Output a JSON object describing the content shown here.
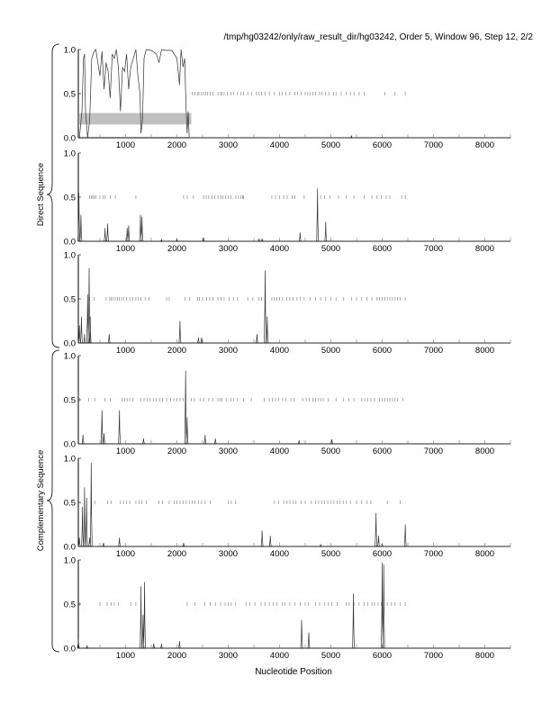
{
  "chart_data": {
    "type": "line",
    "title": "/tmp/hg03242/only/raw_result_dir/hg03242, Order 5, Window 96, Step 12, 2/2",
    "xlabel": "Nucleotide Position",
    "group_labels": [
      "Direct Sequence",
      "Complementary Sequence"
    ],
    "xlim": [
      80,
      8500
    ],
    "ylim": [
      0,
      1
    ],
    "x_ticks": [
      "1000",
      "2000",
      "3000",
      "4000",
      "5000",
      "6000",
      "7000",
      "8000"
    ],
    "x_tick_values": [
      1000,
      2000,
      3000,
      4000,
      5000,
      6000,
      7000,
      8000
    ],
    "y_ticks": [
      "0.0",
      "0.5",
      "1.0"
    ],
    "y_tick_values": [
      0,
      0.5,
      1
    ],
    "highlight_region": {
      "x": [
        100,
        2280
      ],
      "y": [
        0.15,
        0.28
      ]
    },
    "panels": [
      {
        "group": "Direct Sequence",
        "series": [
          [
            100,
            0
          ],
          [
            150,
            0.3
          ],
          [
            180,
            0.9
          ],
          [
            200,
            0.95
          ],
          [
            220,
            0.3
          ],
          [
            260,
            0
          ],
          [
            300,
            0.2
          ],
          [
            340,
            0.9
          ],
          [
            380,
            0.97
          ],
          [
            420,
            1.0
          ],
          [
            460,
            0.85
          ],
          [
            500,
            0.7
          ],
          [
            540,
            0.98
          ],
          [
            580,
            0.55
          ],
          [
            620,
            0.85
          ],
          [
            660,
            0.75
          ],
          [
            700,
            0.45
          ],
          [
            740,
            0.95
          ],
          [
            780,
            0.9
          ],
          [
            820,
            1.0
          ],
          [
            860,
            0.8
          ],
          [
            900,
            0.3
          ],
          [
            940,
            0.8
          ],
          [
            980,
            0.75
          ],
          [
            1020,
            0.95
          ],
          [
            1060,
            0.55
          ],
          [
            1100,
            0.8
          ],
          [
            1150,
            0.9
          ],
          [
            1200,
            1.0
          ],
          [
            1240,
            0.7
          ],
          [
            1280,
            0.5
          ],
          [
            1300,
            0.05
          ],
          [
            1330,
            0.2
          ],
          [
            1360,
            0.9
          ],
          [
            1400,
            1.0
          ],
          [
            1500,
            0.99
          ],
          [
            1600,
            0.95
          ],
          [
            1650,
            0.85
          ],
          [
            1700,
            1.0
          ],
          [
            1800,
            0.99
          ],
          [
            1900,
            0.99
          ],
          [
            2000,
            0.9
          ],
          [
            2050,
            0.6
          ],
          [
            2080,
            1.0
          ],
          [
            2120,
            0.8
          ],
          [
            2150,
            0.9
          ],
          [
            2180,
            0.3
          ],
          [
            2200,
            0.05
          ],
          [
            2220,
            0.3
          ],
          [
            2240,
            0
          ],
          [
            5390,
            0
          ],
          [
            5400,
            0.02
          ],
          [
            5410,
            0
          ],
          [
            8500,
            0
          ]
        ],
        "marks": [
          2300,
          2350,
          2400,
          2430,
          2480,
          2520,
          2560,
          2600,
          2650,
          2700,
          2800,
          2850,
          2880,
          2920,
          2980,
          3050,
          3100,
          3180,
          3250,
          3300,
          3380,
          3450,
          3550,
          3600,
          3650,
          3720,
          3800,
          3900,
          4000,
          4050,
          4120,
          4200,
          4300,
          4350,
          4420,
          4500,
          4550,
          4600,
          4650,
          4700,
          4780,
          4830,
          4900,
          4960,
          5050,
          5100,
          5200,
          5300,
          5380,
          5450,
          5550,
          5650,
          6050,
          6250,
          6450
        ]
      },
      {
        "group": "Direct Sequence",
        "peaks": [
          [
            90,
            0.55
          ],
          [
            130,
            0.3
          ],
          [
            600,
            0.15
          ],
          [
            650,
            0.2
          ],
          [
            1030,
            0.15
          ],
          [
            1060,
            0.18
          ],
          [
            1290,
            0.3
          ],
          [
            1320,
            0.28
          ],
          [
            1700,
            0.02
          ],
          [
            2000,
            0.02
          ],
          [
            2520,
            0.04
          ],
          [
            3600,
            0.03
          ],
          [
            3660,
            0.03
          ],
          [
            4400,
            0.1
          ],
          [
            4740,
            0.6
          ],
          [
            4900,
            0.22
          ]
        ],
        "marks": [
          300,
          330,
          360,
          390,
          420,
          500,
          560,
          600,
          700,
          800,
          1200,
          2130,
          2200,
          2320,
          2520,
          2570,
          2620,
          2680,
          2740,
          2800,
          2860,
          2900,
          2950,
          3000,
          3050,
          3150,
          3200,
          3250,
          3280,
          3300,
          3850,
          3920,
          4000,
          4080,
          4150,
          4250,
          4300,
          4480,
          4800,
          4880,
          4980,
          5150,
          5300,
          5450,
          5650,
          5800,
          5900,
          5980,
          6080,
          6150,
          6380,
          6450
        ]
      },
      {
        "group": "Direct Sequence",
        "peaks": [
          [
            100,
            0.2
          ],
          [
            140,
            0.3
          ],
          [
            200,
            0.1
          ],
          [
            260,
            0.55
          ],
          [
            290,
            0.85
          ],
          [
            310,
            0.3
          ],
          [
            680,
            0.1
          ],
          [
            2060,
            0.25
          ],
          [
            2420,
            0.06
          ],
          [
            2480,
            0.06
          ],
          [
            3560,
            0.1
          ],
          [
            3720,
            0.82
          ],
          [
            3760,
            0.3
          ]
        ],
        "marks": [
          300,
          390,
          620,
          690,
          720,
          760,
          800,
          840,
          880,
          920,
          960,
          1020,
          1080,
          1140,
          1200,
          1250,
          1300,
          1380,
          1460,
          1800,
          1850,
          2160,
          2250,
          2400,
          2440,
          2500,
          2580,
          2640,
          2700,
          2800,
          2860,
          2920,
          3020,
          3100,
          3180,
          3380,
          3480,
          3600,
          3650,
          3720,
          3850,
          3900,
          3950,
          4000,
          4060,
          4140,
          4200,
          4260,
          4340,
          4400,
          4480,
          4600,
          4700,
          4800,
          4900,
          5000,
          5100,
          5250,
          5400,
          5500,
          5600,
          5700,
          5800,
          5900,
          5950,
          6000,
          6050,
          6100,
          6150,
          6200,
          6250,
          6300,
          6350,
          6450
        ]
      },
      {
        "group": "Complementary Sequence",
        "peaks": [
          [
            170,
            0.1
          ],
          [
            540,
            0.38
          ],
          [
            580,
            0.12
          ],
          [
            880,
            0.38
          ],
          [
            1350,
            0.06
          ],
          [
            2170,
            0.83
          ],
          [
            2200,
            0.3
          ],
          [
            2550,
            0.1
          ],
          [
            2750,
            0.06
          ],
          [
            4380,
            0.04
          ],
          [
            5020,
            0.05
          ]
        ],
        "marks": [
          100,
          280,
          400,
          600,
          700,
          930,
          980,
          1030,
          1080,
          1140,
          1300,
          1360,
          1420,
          1480,
          1540,
          1600,
          1660,
          1720,
          1800,
          1880,
          1940,
          2000,
          2060,
          2120,
          2280,
          2340,
          2450,
          2520,
          2620,
          2700,
          2800,
          2840,
          2880,
          2960,
          3050,
          3100,
          3180,
          3300,
          3450,
          3700,
          3800,
          3860,
          3920,
          3980,
          4060,
          4120,
          4220,
          4280,
          4450,
          4520,
          4580,
          4650,
          4700,
          4750,
          4800,
          4850,
          4950,
          5100,
          5250,
          5350,
          5450,
          5600,
          5660,
          5720,
          5780,
          5850,
          5950,
          6000,
          6050,
          6100,
          6150,
          6200,
          6250,
          6300,
          6400
        ]
      },
      {
        "group": "Complementary Sequence",
        "peaks": [
          [
            100,
            0.1
          ],
          [
            160,
            0.45
          ],
          [
            200,
            0.67
          ],
          [
            240,
            0.55
          ],
          [
            300,
            0.1
          ],
          [
            330,
            0.95
          ],
          [
            570,
            0.04
          ],
          [
            880,
            0.1
          ],
          [
            2130,
            0.04
          ],
          [
            3660,
            0.18
          ],
          [
            3820,
            0.12
          ],
          [
            4800,
            0.02
          ],
          [
            5880,
            0.38
          ],
          [
            5930,
            0.12
          ],
          [
            6000,
            0.03
          ],
          [
            6450,
            0.25
          ]
        ],
        "marks": [
          400,
          650,
          720,
          900,
          960,
          1020,
          1080,
          1200,
          1260,
          1320,
          1400,
          1650,
          1720,
          1850,
          1950,
          2000,
          2060,
          2120,
          2180,
          2240,
          2300,
          2350,
          2420,
          2480,
          2550,
          2650,
          3000,
          3060,
          3140,
          3900,
          3980,
          4080,
          4140,
          4200,
          4260,
          4320,
          4420,
          4500,
          4620,
          4700,
          4760,
          4820,
          4880,
          4940,
          5000,
          5060,
          5120,
          5180,
          5240,
          5300,
          5380,
          5500,
          5600,
          5700,
          5780,
          6100,
          6350
        ]
      },
      {
        "group": "Complementary Sequence",
        "peaks": [
          [
            80,
            0.1
          ],
          [
            250,
            0.03
          ],
          [
            1300,
            0.7
          ],
          [
            1340,
            0.38
          ],
          [
            1370,
            0.75
          ],
          [
            1550,
            0.05
          ],
          [
            1700,
            0.05
          ],
          [
            2050,
            0.08
          ],
          [
            4430,
            0.32
          ],
          [
            4570,
            0.18
          ],
          [
            5440,
            0.62
          ],
          [
            6000,
            0.97
          ],
          [
            6030,
            0.95
          ]
        ],
        "marks": [
          100,
          500,
          640,
          720,
          780,
          860,
          1100,
          1200,
          2200,
          2350,
          2540,
          2650,
          2750,
          2850,
          2940,
          3000,
          3060,
          3140,
          3350,
          3420,
          3520,
          3640,
          3720,
          3800,
          3880,
          3950,
          4050,
          4100,
          4200,
          4300,
          4400,
          4500,
          4560,
          4700,
          4780,
          4880,
          4950,
          5020,
          5120,
          5300,
          5360,
          5450,
          5550,
          5650,
          5720,
          5800,
          5850,
          5920,
          5980,
          6100,
          6180,
          6250,
          6350,
          6450
        ]
      }
    ]
  }
}
